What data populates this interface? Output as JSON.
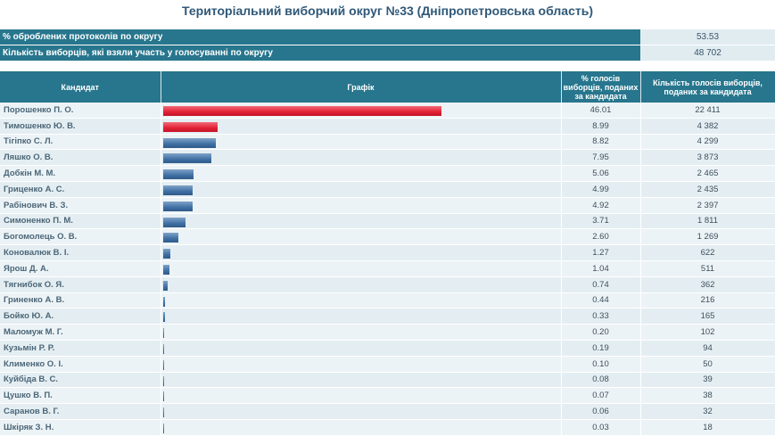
{
  "title": "Територіальний виборчий округ №33 (Дніпропетровська область)",
  "summary": [
    {
      "label": "% оброблених протоколів по округу",
      "value": "53.53"
    },
    {
      "label": "Кількість виборців, які взяли участь у голосуванні по округу",
      "value": "48 702"
    }
  ],
  "headers": {
    "candidate": "Кандидат",
    "graph": "Графік",
    "percent": "% голосів виборців, поданих за кандидата",
    "votes": "Кількість голосів виборців, поданих за кандидата"
  },
  "colors": {
    "leader_bar": "#e12035",
    "other_bar": "#3f6fa3",
    "header_bg": "#27768d"
  },
  "chart_data": {
    "type": "bar",
    "orientation": "horizontal",
    "title": "Територіальний виборчий округ №33 (Дніпропетровська область)",
    "xlim": [
      0,
      100
    ],
    "categories": [
      "Порошенко П. О.",
      "Тимошенко Ю. В.",
      "Тігіпко С. Л.",
      "Ляшко О. В.",
      "Добкін М. М.",
      "Гриценко А. С.",
      "Рабінович В. З.",
      "Симоненко П. М.",
      "Богомолець О. В.",
      "Коновалюк В. І.",
      "Ярош Д. А.",
      "Тягнибок О. Я.",
      "Гриненко А. В.",
      "Бойко Ю. А.",
      "Маломуж М. Г.",
      "Кузьмін Р. Р.",
      "Клименко О. І.",
      "Куйбіда В. С.",
      "Цушко В. П.",
      "Саранов В. Г.",
      "Шкіряк З. Н."
    ],
    "values": [
      46.01,
      8.99,
      8.82,
      7.95,
      5.06,
      4.99,
      4.92,
      3.71,
      2.6,
      1.27,
      1.04,
      0.74,
      0.44,
      0.33,
      0.2,
      0.19,
      0.1,
      0.08,
      0.07,
      0.06,
      0.03
    ],
    "percent_labels": [
      "46.01",
      "8.99",
      "8.82",
      "7.95",
      "5.06",
      "4.99",
      "4.92",
      "3.71",
      "2.60",
      "1.27",
      "1.04",
      "0.74",
      "0.44",
      "0.33",
      "0.20",
      "0.19",
      "0.10",
      "0.08",
      "0.07",
      "0.06",
      "0.03"
    ],
    "votes": [
      "22 411",
      "4 382",
      "4 299",
      "3 873",
      "2 465",
      "2 435",
      "2 397",
      "1 811",
      "1 269",
      "622",
      "511",
      "362",
      "216",
      "165",
      "102",
      "94",
      "50",
      "39",
      "38",
      "32",
      "18"
    ]
  }
}
